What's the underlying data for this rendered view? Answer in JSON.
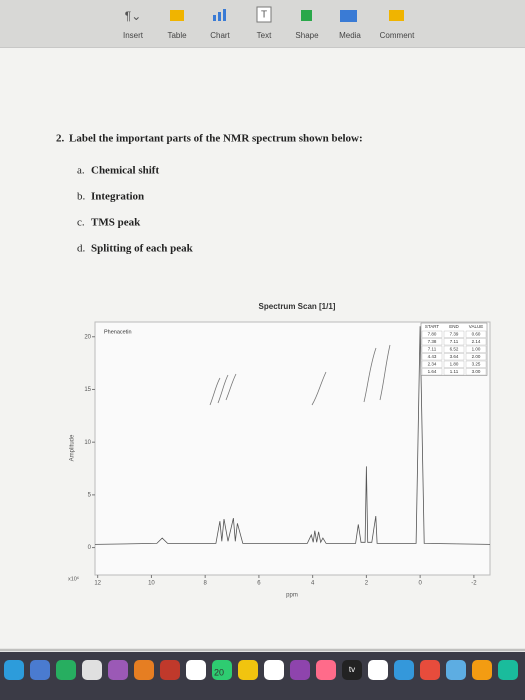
{
  "toolbar": {
    "items": [
      "Insert",
      "Table",
      "Chart",
      "Text",
      "Shape",
      "Media",
      "Comment"
    ]
  },
  "question": {
    "number": "2.",
    "text": "Label the important parts of the NMR spectrum shown below:",
    "items": [
      {
        "marker": "a.",
        "text": "Chemical shift"
      },
      {
        "marker": "b.",
        "text": "Integration"
      },
      {
        "marker": "c.",
        "text": "TMS peak"
      },
      {
        "marker": "d.",
        "text": "Splitting of each peak"
      }
    ]
  },
  "chart_data": {
    "type": "line",
    "title": "Spectrum Scan [1/1]",
    "annotation": "Phenacetin",
    "y_label": "Amplitude",
    "x_label": "ppm",
    "y_multiplier": "x10⁶",
    "color": "#555555",
    "x": [
      12.1,
      9.8,
      9.6,
      9.4,
      7.6,
      7.45,
      7.38,
      7.3,
      7.15,
      6.95,
      6.88,
      6.8,
      6.6,
      4.2,
      4.05,
      3.98,
      3.92,
      3.85,
      3.78,
      3.7,
      3.62,
      3.5,
      2.4,
      2.3,
      2.2,
      2.05,
      2.0,
      1.95,
      1.8,
      1.65,
      1.6,
      1.4,
      0.15,
      0.0,
      -0.15,
      -2.6
    ],
    "values": [
      0.3,
      0.4,
      0.9,
      0.4,
      0.4,
      2.5,
      0.6,
      2.7,
      0.6,
      2.8,
      0.6,
      2.3,
      0.4,
      0.4,
      1.2,
      0.5,
      1.6,
      0.5,
      1.5,
      0.5,
      0.9,
      0.4,
      0.4,
      2.2,
      0.5,
      0.5,
      7.7,
      0.5,
      0.5,
      3.0,
      0.4,
      0.4,
      0.4,
      21,
      0.4,
      0.3
    ],
    "xlim": [
      12.1,
      -2.6
    ],
    "ylim": [
      -2.6,
      21.4
    ],
    "xticks": [
      12,
      10,
      8,
      6,
      4,
      2,
      0,
      -2
    ],
    "yticks": [
      0,
      5,
      10,
      15,
      20
    ],
    "integration_table": {
      "header": [
        "START",
        "END",
        "VALUE"
      ],
      "rows": [
        [
          "7.80",
          "7.39",
          "0.60"
        ],
        [
          "7.38",
          "7.11",
          "2.14"
        ],
        [
          "7.11",
          "6.52",
          "1.00"
        ],
        [
          "4.43",
          "3.64",
          "2.00"
        ],
        [
          "2.34",
          "1.80",
          "3.25"
        ],
        [
          "1.64",
          "1.11",
          "3.00"
        ]
      ]
    }
  },
  "dock": {
    "calendar_day": "20",
    "tv_label": "tv"
  }
}
